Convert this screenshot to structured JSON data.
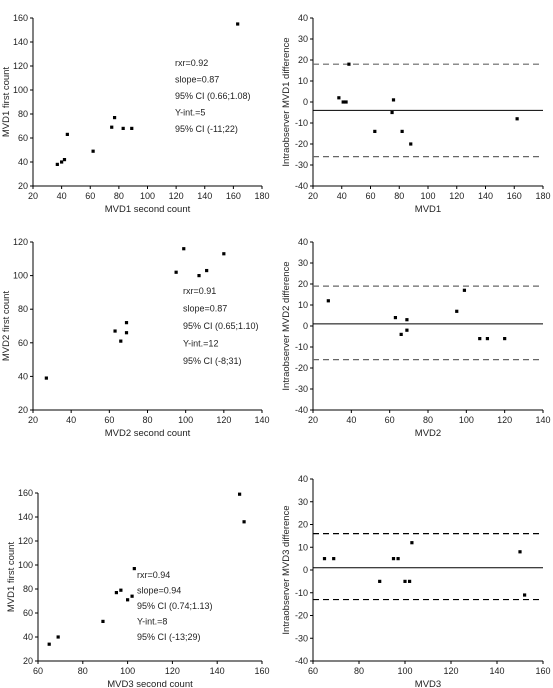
{
  "chart_data": [
    {
      "type": "scatter",
      "id": "mvd1-scatter",
      "xlabel": "MVD1 second count",
      "ylabel": "MVD1 first count",
      "xlim": [
        20,
        180
      ],
      "ylim": [
        20,
        160
      ],
      "xticks": [
        20,
        40,
        60,
        80,
        100,
        120,
        140,
        160,
        180
      ],
      "yticks": [
        20,
        40,
        60,
        80,
        100,
        120,
        140,
        160
      ],
      "points": [
        [
          37,
          38
        ],
        [
          40,
          40
        ],
        [
          42,
          42
        ],
        [
          44,
          63
        ],
        [
          62,
          49
        ],
        [
          75,
          69
        ],
        [
          77,
          77
        ],
        [
          83,
          68
        ],
        [
          89,
          68
        ],
        [
          163,
          155
        ]
      ],
      "annotations": [
        "rxr=0.92",
        "slope=0.87",
        "95% CI (0.66;1.08)",
        "Y-int.=5",
        "95% CI (-11;22)"
      ]
    },
    {
      "type": "scatter",
      "id": "mvd1-bland-altman",
      "xlabel": "MVD1",
      "ylabel": "Intraobserver MVD1 difference",
      "xlim": [
        20,
        180
      ],
      "ylim": [
        -40,
        40
      ],
      "xticks": [
        20,
        40,
        60,
        80,
        100,
        120,
        140,
        160,
        180
      ],
      "yticks": [
        -40,
        -30,
        -20,
        -10,
        0,
        10,
        20,
        30,
        40
      ],
      "mean": -4,
      "limits": [
        18,
        -26
      ],
      "limit_style": "gray",
      "points": [
        [
          38,
          2
        ],
        [
          41,
          0
        ],
        [
          43,
          0
        ],
        [
          45,
          18
        ],
        [
          63,
          -14
        ],
        [
          75,
          -5
        ],
        [
          76,
          1
        ],
        [
          82,
          -14
        ],
        [
          88,
          -20
        ],
        [
          162,
          -8
        ]
      ]
    },
    {
      "type": "scatter",
      "id": "mvd2-scatter",
      "xlabel": "MVD2 second count",
      "ylabel": "MVD2 first count",
      "xlim": [
        20,
        140
      ],
      "ylim": [
        20,
        120
      ],
      "xticks": [
        20,
        40,
        60,
        80,
        100,
        120,
        140
      ],
      "yticks": [
        20,
        40,
        60,
        80,
        100,
        120
      ],
      "points": [
        [
          27,
          39
        ],
        [
          63,
          67
        ],
        [
          66,
          61
        ],
        [
          69,
          66
        ],
        [
          69,
          72
        ],
        [
          95,
          102
        ],
        [
          99,
          116
        ],
        [
          107,
          100
        ],
        [
          111,
          103
        ],
        [
          120,
          113
        ]
      ],
      "annotations": [
        "rxr=0.91",
        "slope=0.87",
        "95% CI (0.65;1.10)",
        "Y-int.=12",
        "95% CI (-8;31)"
      ]
    },
    {
      "type": "scatter",
      "id": "mvd2-bland-altman",
      "xlabel": "MVD2",
      "ylabel": "Intraobserver MVD2 difference",
      "xlim": [
        20,
        140
      ],
      "ylim": [
        -40,
        40
      ],
      "xticks": [
        20,
        40,
        60,
        80,
        100,
        120,
        140
      ],
      "yticks": [
        -40,
        -30,
        -20,
        -10,
        0,
        10,
        20,
        30,
        40
      ],
      "mean": 1,
      "limits": [
        19,
        -16
      ],
      "limit_style": "gray",
      "points": [
        [
          28,
          12
        ],
        [
          63,
          4
        ],
        [
          66,
          -4
        ],
        [
          69,
          -2
        ],
        [
          69,
          3
        ],
        [
          95,
          7
        ],
        [
          99,
          17
        ],
        [
          107,
          -6
        ],
        [
          111,
          -6
        ],
        [
          120,
          -6
        ]
      ]
    },
    {
      "type": "scatter",
      "id": "mvd3-scatter",
      "xlabel": "MVD3 second count",
      "ylabel": "MVD1 first count",
      "xlim": [
        60,
        160
      ],
      "ylim": [
        20,
        160
      ],
      "xticks": [
        60,
        80,
        100,
        120,
        140,
        160
      ],
      "yticks": [
        20,
        40,
        60,
        80,
        100,
        120,
        140,
        160
      ],
      "points": [
        [
          65,
          34
        ],
        [
          69,
          40
        ],
        [
          89,
          53
        ],
        [
          95,
          77
        ],
        [
          97,
          79
        ],
        [
          100,
          71
        ],
        [
          102,
          74
        ],
        [
          103,
          97
        ],
        [
          150,
          159
        ],
        [
          152,
          136
        ]
      ],
      "annotations": [
        "rxr=0.94",
        "slope=0.94",
        "95% CI (0.74;1.13)",
        "Y-int.=8",
        "95% CI (-13;29)"
      ]
    },
    {
      "type": "scatter",
      "id": "mvd3-bland-altman",
      "xlabel": "MVD3",
      "ylabel": "Intraobserver MVD3 difference",
      "xlim": [
        60,
        160
      ],
      "ylim": [
        -40,
        40
      ],
      "xticks": [
        60,
        80,
        100,
        120,
        140,
        160
      ],
      "yticks": [
        -40,
        -30,
        -20,
        -10,
        0,
        10,
        20,
        30,
        40
      ],
      "mean": 1,
      "limits": [
        16,
        -13
      ],
      "limit_style": "dark",
      "points": [
        [
          65,
          5
        ],
        [
          69,
          5
        ],
        [
          89,
          -5
        ],
        [
          95,
          5
        ],
        [
          97,
          5
        ],
        [
          100,
          -5
        ],
        [
          102,
          -5
        ],
        [
          103,
          12
        ],
        [
          150,
          8
        ],
        [
          152,
          -11
        ]
      ]
    }
  ]
}
